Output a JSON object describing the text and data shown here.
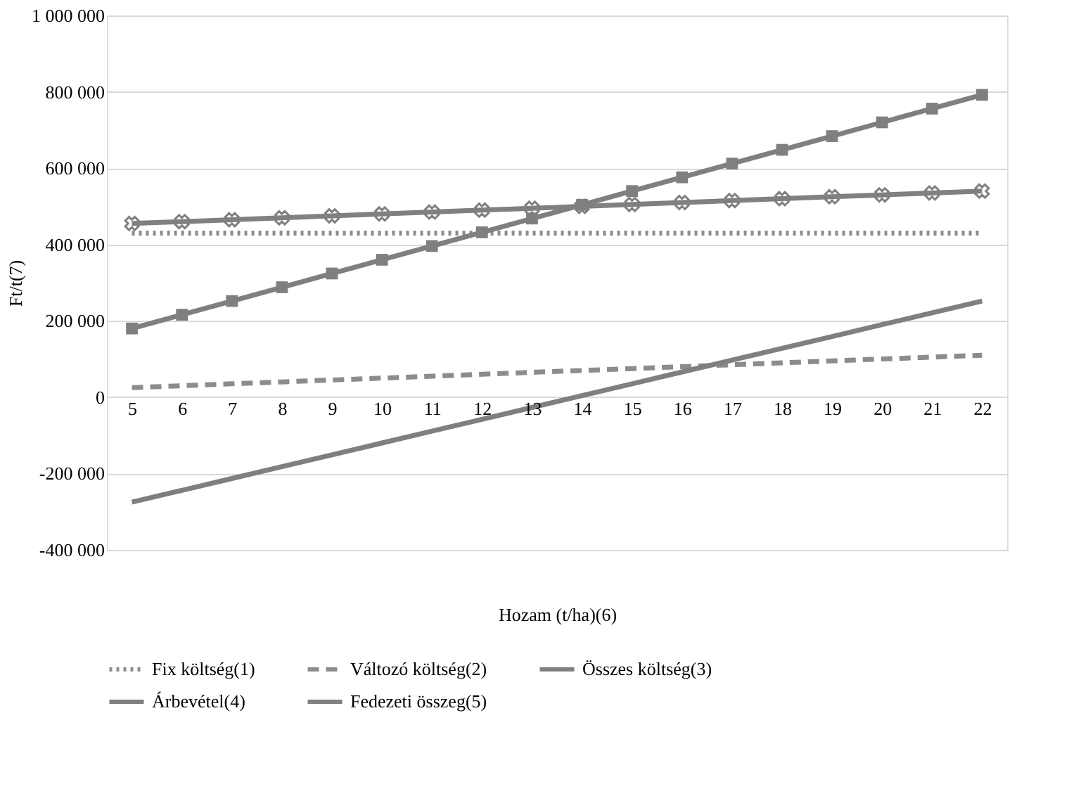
{
  "chart_data": {
    "type": "line",
    "xlabel": "Hozam (t/ha)(6)",
    "ylabel": "Ft/t(7)",
    "categories": [
      "5",
      "6",
      "7",
      "8",
      "9",
      "10",
      "11",
      "12",
      "13",
      "14",
      "15",
      "16",
      "17",
      "18",
      "19",
      "20",
      "21",
      "22"
    ],
    "series": [
      {
        "name": "Fix költség(1)",
        "color": "#8c8c8c",
        "line_style": "dotted",
        "marker": "none",
        "values": [
          430000,
          430000,
          430000,
          430000,
          430000,
          430000,
          430000,
          430000,
          430000,
          430000,
          430000,
          430000,
          430000,
          430000,
          430000,
          430000,
          430000,
          430000
        ]
      },
      {
        "name": "Változó költség(2)",
        "color": "#8c8c8c",
        "line_style": "dashed",
        "marker": "none",
        "values": [
          25000,
          30000,
          35000,
          40000,
          45000,
          50000,
          55000,
          60000,
          65000,
          70000,
          75000,
          80000,
          85000,
          90000,
          95000,
          100000,
          105000,
          110000
        ]
      },
      {
        "name": "Összes költség(3)",
        "color": "#808080",
        "line_style": "solid",
        "marker": "cross",
        "values": [
          455000,
          460000,
          465000,
          470000,
          475000,
          480000,
          485000,
          490000,
          495000,
          500000,
          505000,
          510000,
          515000,
          520000,
          525000,
          530000,
          535000,
          540000
        ]
      },
      {
        "name": "Árbevétel(4)",
        "color": "#7f7f7f",
        "line_style": "solid",
        "marker": "square",
        "values": [
          180000,
          216000,
          252000,
          288000,
          324000,
          360000,
          396000,
          432000,
          468000,
          504000,
          540000,
          576000,
          612000,
          648000,
          684000,
          720000,
          756000,
          792000
        ]
      },
      {
        "name": "Fedezeti összeg(5)",
        "color": "#7f7f7f",
        "line_style": "solid",
        "marker": "none",
        "values": [
          -275000,
          -244000,
          -213000,
          -182000,
          -151000,
          -120000,
          -89000,
          -58000,
          -27000,
          4000,
          35000,
          66000,
          97000,
          128000,
          159000,
          190000,
          221000,
          252000
        ]
      }
    ],
    "ylim": [
      -400000,
      1000000
    ],
    "yticks": [
      {
        "value": -400000,
        "label": "-400 000"
      },
      {
        "value": -200000,
        "label": "-200 000"
      },
      0,
      {
        "value": 200000,
        "label": "200 000"
      },
      {
        "value": 400000,
        "label": "400 000"
      },
      {
        "value": 600000,
        "label": "600 000"
      },
      {
        "value": 800000,
        "label": "800 000"
      },
      {
        "value": 1000000,
        "label": "1 000 000"
      }
    ],
    "grid": "y",
    "legend": "bottom"
  }
}
